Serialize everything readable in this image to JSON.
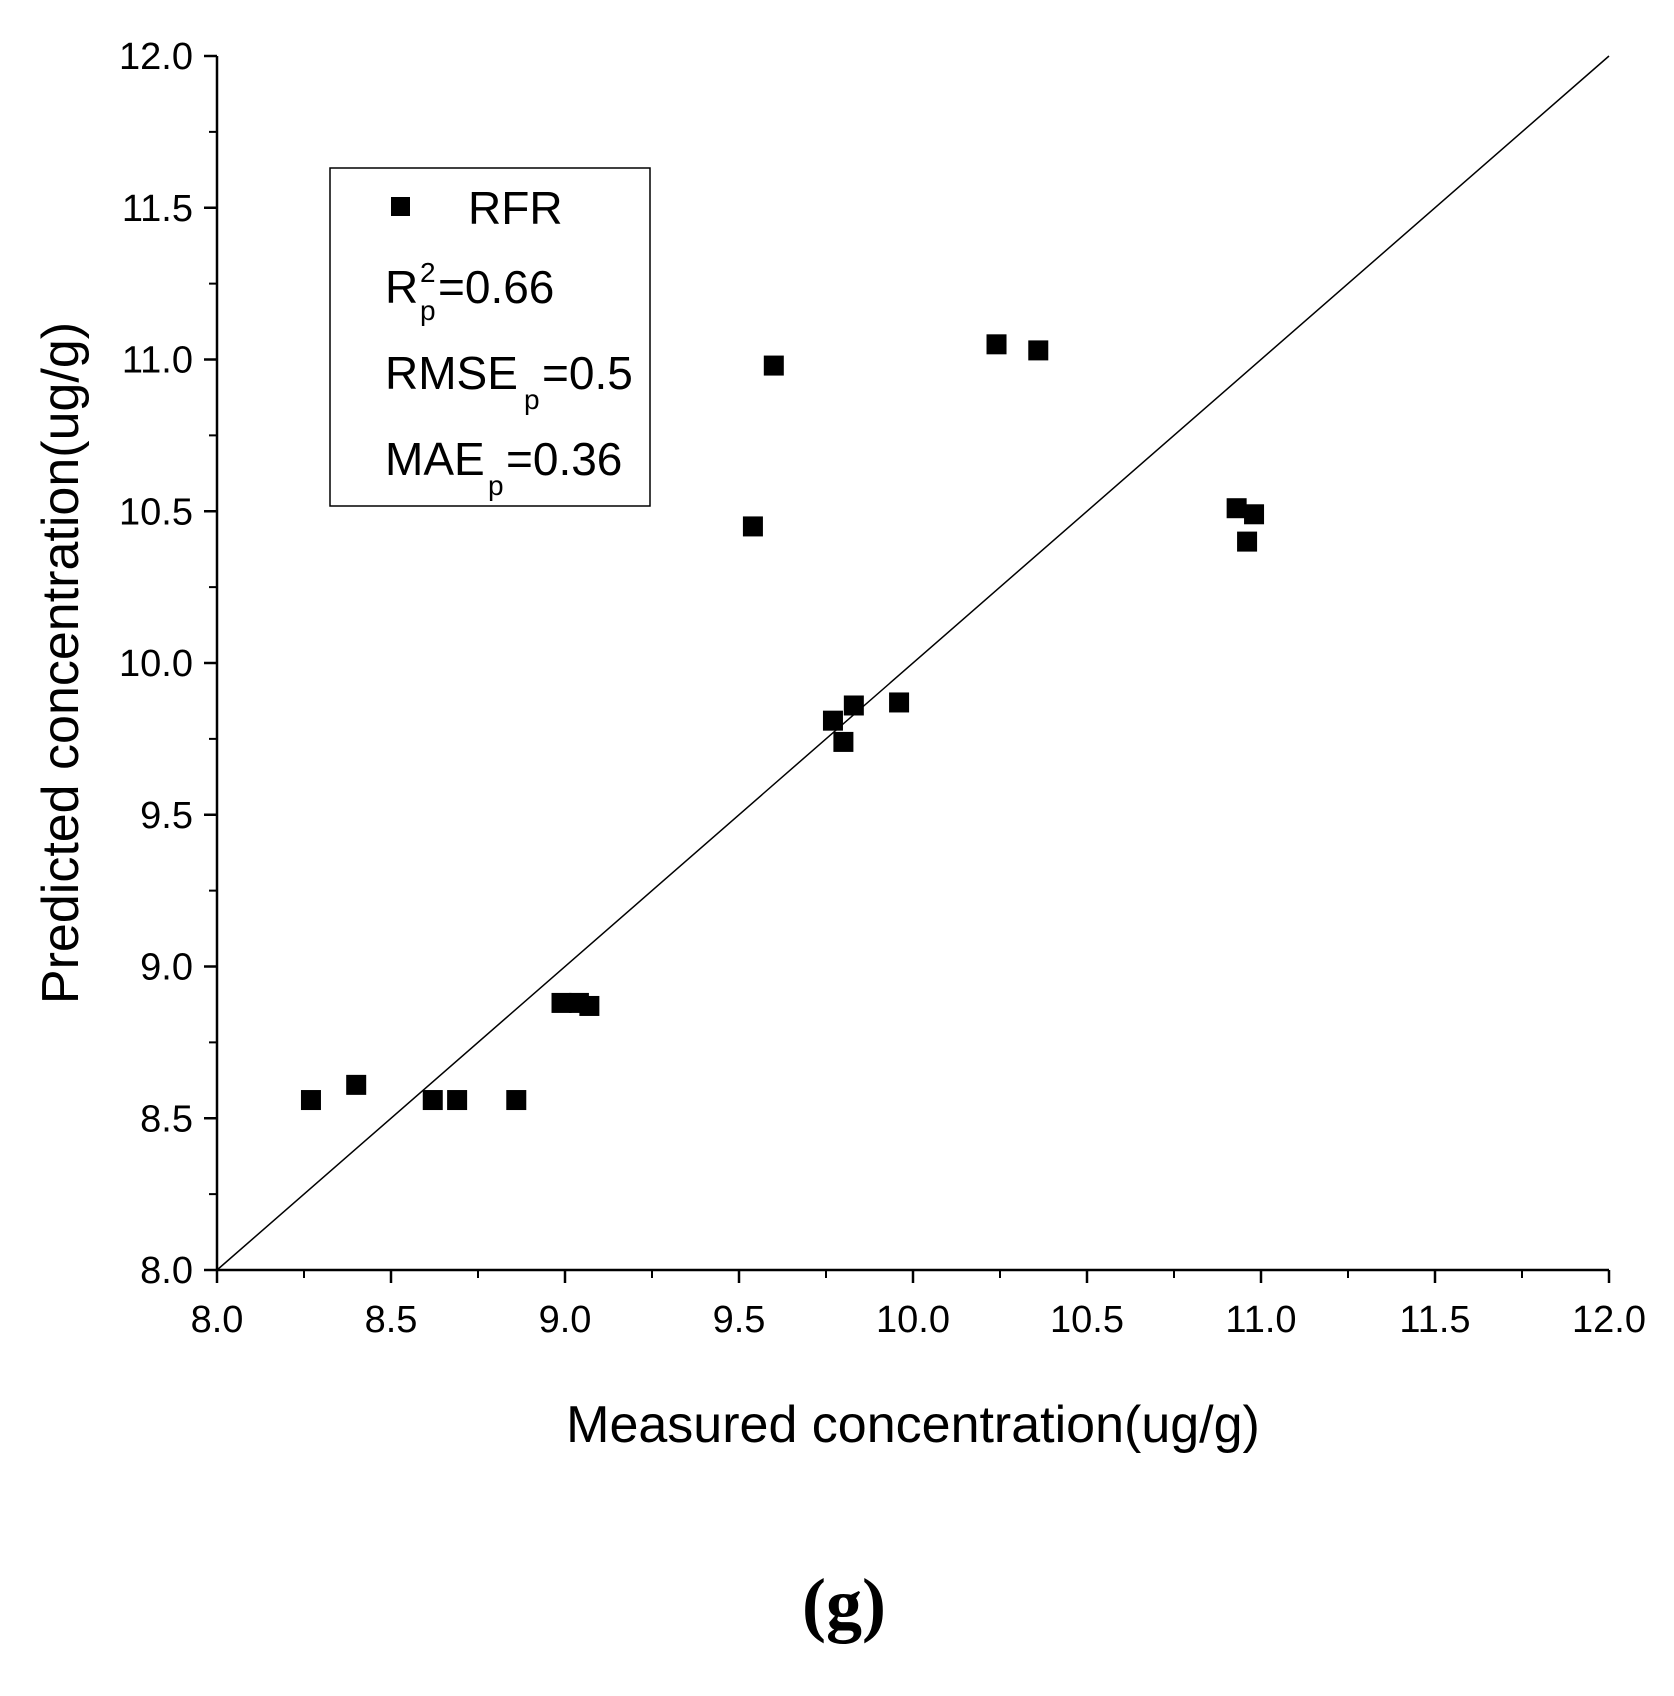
{
  "chart_data": {
    "type": "scatter",
    "panel_label": "(g)",
    "xlabel": "Measured concentration(ug/g)",
    "ylabel": "Predicted concentration(ug/g)",
    "xlim": [
      8.0,
      12.0
    ],
    "ylim": [
      8.0,
      12.0
    ],
    "x_ticks": [
      "8.0",
      "8.5",
      "9.0",
      "9.5",
      "10.0",
      "10.5",
      "11.0",
      "11.5",
      "12.0"
    ],
    "y_ticks": [
      "8.0",
      "8.5",
      "9.0",
      "9.5",
      "10.0",
      "10.5",
      "11.0",
      "11.5",
      "12.0"
    ],
    "reference_line": {
      "from": [
        8.0,
        8.0
      ],
      "to": [
        12.0,
        12.0
      ]
    },
    "legend": {
      "series_label": "RFR",
      "r2_base": "R",
      "r2_sup": "2",
      "r2_sub": "p",
      "r2_value": "=0.66",
      "rmse_base": "RMSE",
      "rmse_sub": "p",
      "rmse_value": "=0.5",
      "mae_base": "MAE",
      "mae_sub": "p",
      "mae_value": "=0.36"
    },
    "series": [
      {
        "name": "RFR",
        "marker": "square",
        "color": "#000000",
        "points": [
          [
            8.27,
            8.56
          ],
          [
            8.4,
            8.61
          ],
          [
            8.62,
            8.56
          ],
          [
            8.69,
            8.56
          ],
          [
            8.86,
            8.56
          ],
          [
            8.99,
            8.88
          ],
          [
            9.04,
            8.88
          ],
          [
            9.07,
            8.87
          ],
          [
            9.54,
            10.45
          ],
          [
            9.6,
            10.98
          ],
          [
            9.77,
            9.81
          ],
          [
            9.8,
            9.74
          ],
          [
            9.83,
            9.86
          ],
          [
            9.96,
            9.87
          ],
          [
            10.24,
            11.05
          ],
          [
            10.36,
            11.03
          ],
          [
            10.93,
            10.51
          ],
          [
            10.96,
            10.4
          ],
          [
            10.98,
            10.49
          ]
        ]
      }
    ]
  }
}
